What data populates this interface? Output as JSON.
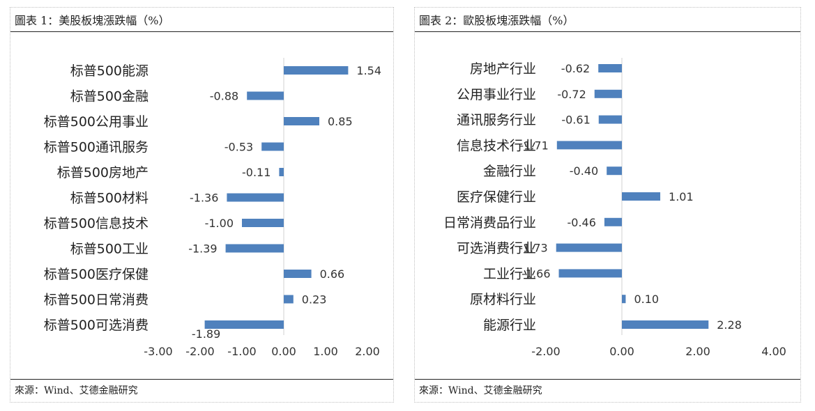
{
  "panels": [
    {
      "title": "圖表 1：美股板塊漲跌幅（%）",
      "source": "來源：Wind、艾德金融研究"
    },
    {
      "title": "圖表 2：歐股板塊漲跌幅（%）",
      "source": "來源：Wind、艾德金融研究"
    }
  ],
  "chart_data": [
    {
      "type": "bar",
      "orientation": "horizontal",
      "title": "圖表 1：美股板塊漲跌幅（%）",
      "categories": [
        "标普500能源",
        "标普500金融",
        "标普500公用事业",
        "标普500通讯服务",
        "标普500房地产",
        "标普500材料",
        "标普500信息技术",
        "标普500工业",
        "标普500医疗保健",
        "标普500日常消费",
        "标普500可选消费"
      ],
      "values": [
        1.54,
        -0.88,
        0.85,
        -0.53,
        -0.11,
        -1.36,
        -1.0,
        -1.39,
        0.66,
        0.23,
        -1.89
      ],
      "value_labels": [
        "1.54",
        "-0.88",
        "0.85",
        "-0.53",
        "-0.11",
        "-1.36",
        "-1.00",
        "-1.39",
        "0.66",
        "0.23",
        "-1.89"
      ],
      "xlim": [
        -3,
        2
      ],
      "ticks": [
        "-3.00",
        "-2.00",
        "-1.00",
        "0.00",
        "1.00",
        "2.00"
      ],
      "color": "#4f81bd",
      "grid": false
    },
    {
      "type": "bar",
      "orientation": "horizontal",
      "title": "圖表 2：歐股板塊漲跌幅（%）",
      "categories": [
        "房地产行业",
        "公用事业行业",
        "通讯服务行业",
        "信息技术行业",
        "金融行业",
        "医疗保健行业",
        "日常消费品行业",
        "可选消费行业",
        "工业行业",
        "原材料行业",
        "能源行业"
      ],
      "values": [
        -0.62,
        -0.72,
        -0.61,
        -1.71,
        -0.4,
        1.01,
        -0.46,
        -1.73,
        -1.66,
        0.1,
        2.28
      ],
      "value_labels": [
        "-0.62",
        "-0.72",
        "-0.61",
        "-1.71",
        "-0.40",
        "1.01",
        "-0.46",
        "-1.73",
        "-1.66",
        "0.10",
        "2.28"
      ],
      "xlim": [
        -3,
        4
      ],
      "ticks": [
        "-2.00",
        "0.00",
        "2.00",
        "4.00"
      ],
      "color": "#4f81bd",
      "grid": false
    }
  ]
}
